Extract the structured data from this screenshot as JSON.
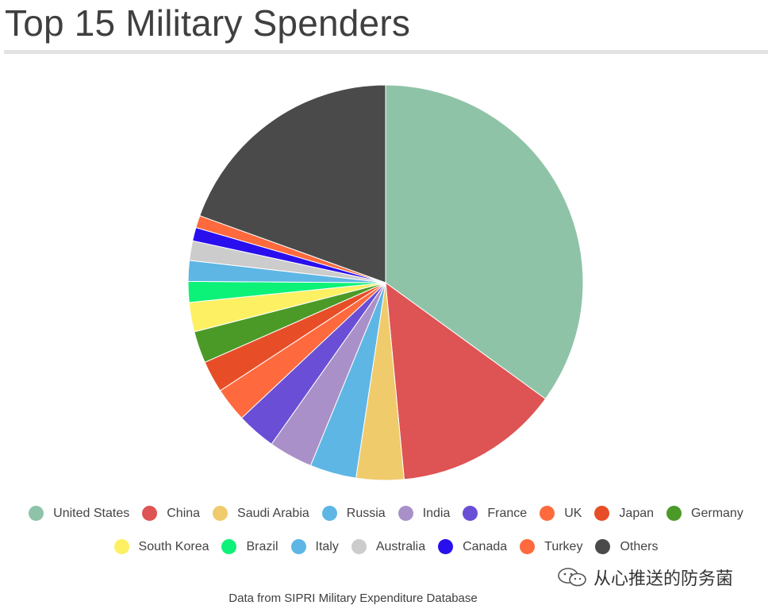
{
  "title": "Top 15 Military Spenders",
  "source": "Data from SIPRI Military Expenditure Database",
  "watermark": "从心推送的防务菌",
  "chart_data": {
    "type": "pie",
    "title": "Top 15 Military Spenders",
    "legend_position": "bottom",
    "start_angle_deg": 0,
    "direction": "clockwise",
    "series": [
      {
        "name": "United States",
        "value": 35.0,
        "color": "#8fc3a8"
      },
      {
        "name": "China",
        "value": 13.5,
        "color": "#de5353"
      },
      {
        "name": "Saudi Arabia",
        "value": 3.9,
        "color": "#efcb6c"
      },
      {
        "name": "Russia",
        "value": 3.8,
        "color": "#5eb6e4"
      },
      {
        "name": "India",
        "value": 3.6,
        "color": "#aa90c8"
      },
      {
        "name": "France",
        "value": 3.2,
        "color": "#6a4ed6"
      },
      {
        "name": "UK",
        "value": 2.8,
        "color": "#fe6a3d"
      },
      {
        "name": "Japan",
        "value": 2.6,
        "color": "#e74e27"
      },
      {
        "name": "Germany",
        "value": 2.6,
        "color": "#4b9a27"
      },
      {
        "name": "South Korea",
        "value": 2.4,
        "color": "#fdf063"
      },
      {
        "name": "Brazil",
        "value": 1.7,
        "color": "#0cf278"
      },
      {
        "name": "Italy",
        "value": 1.7,
        "color": "#5eb6e4"
      },
      {
        "name": "Australia",
        "value": 1.6,
        "color": "#cccccc"
      },
      {
        "name": "Canada",
        "value": 1.1,
        "color": "#2a0fee"
      },
      {
        "name": "Turkey",
        "value": 1.0,
        "color": "#fe6a3d"
      },
      {
        "name": "Others",
        "value": 19.5,
        "color": "#4a4a4a"
      }
    ]
  }
}
